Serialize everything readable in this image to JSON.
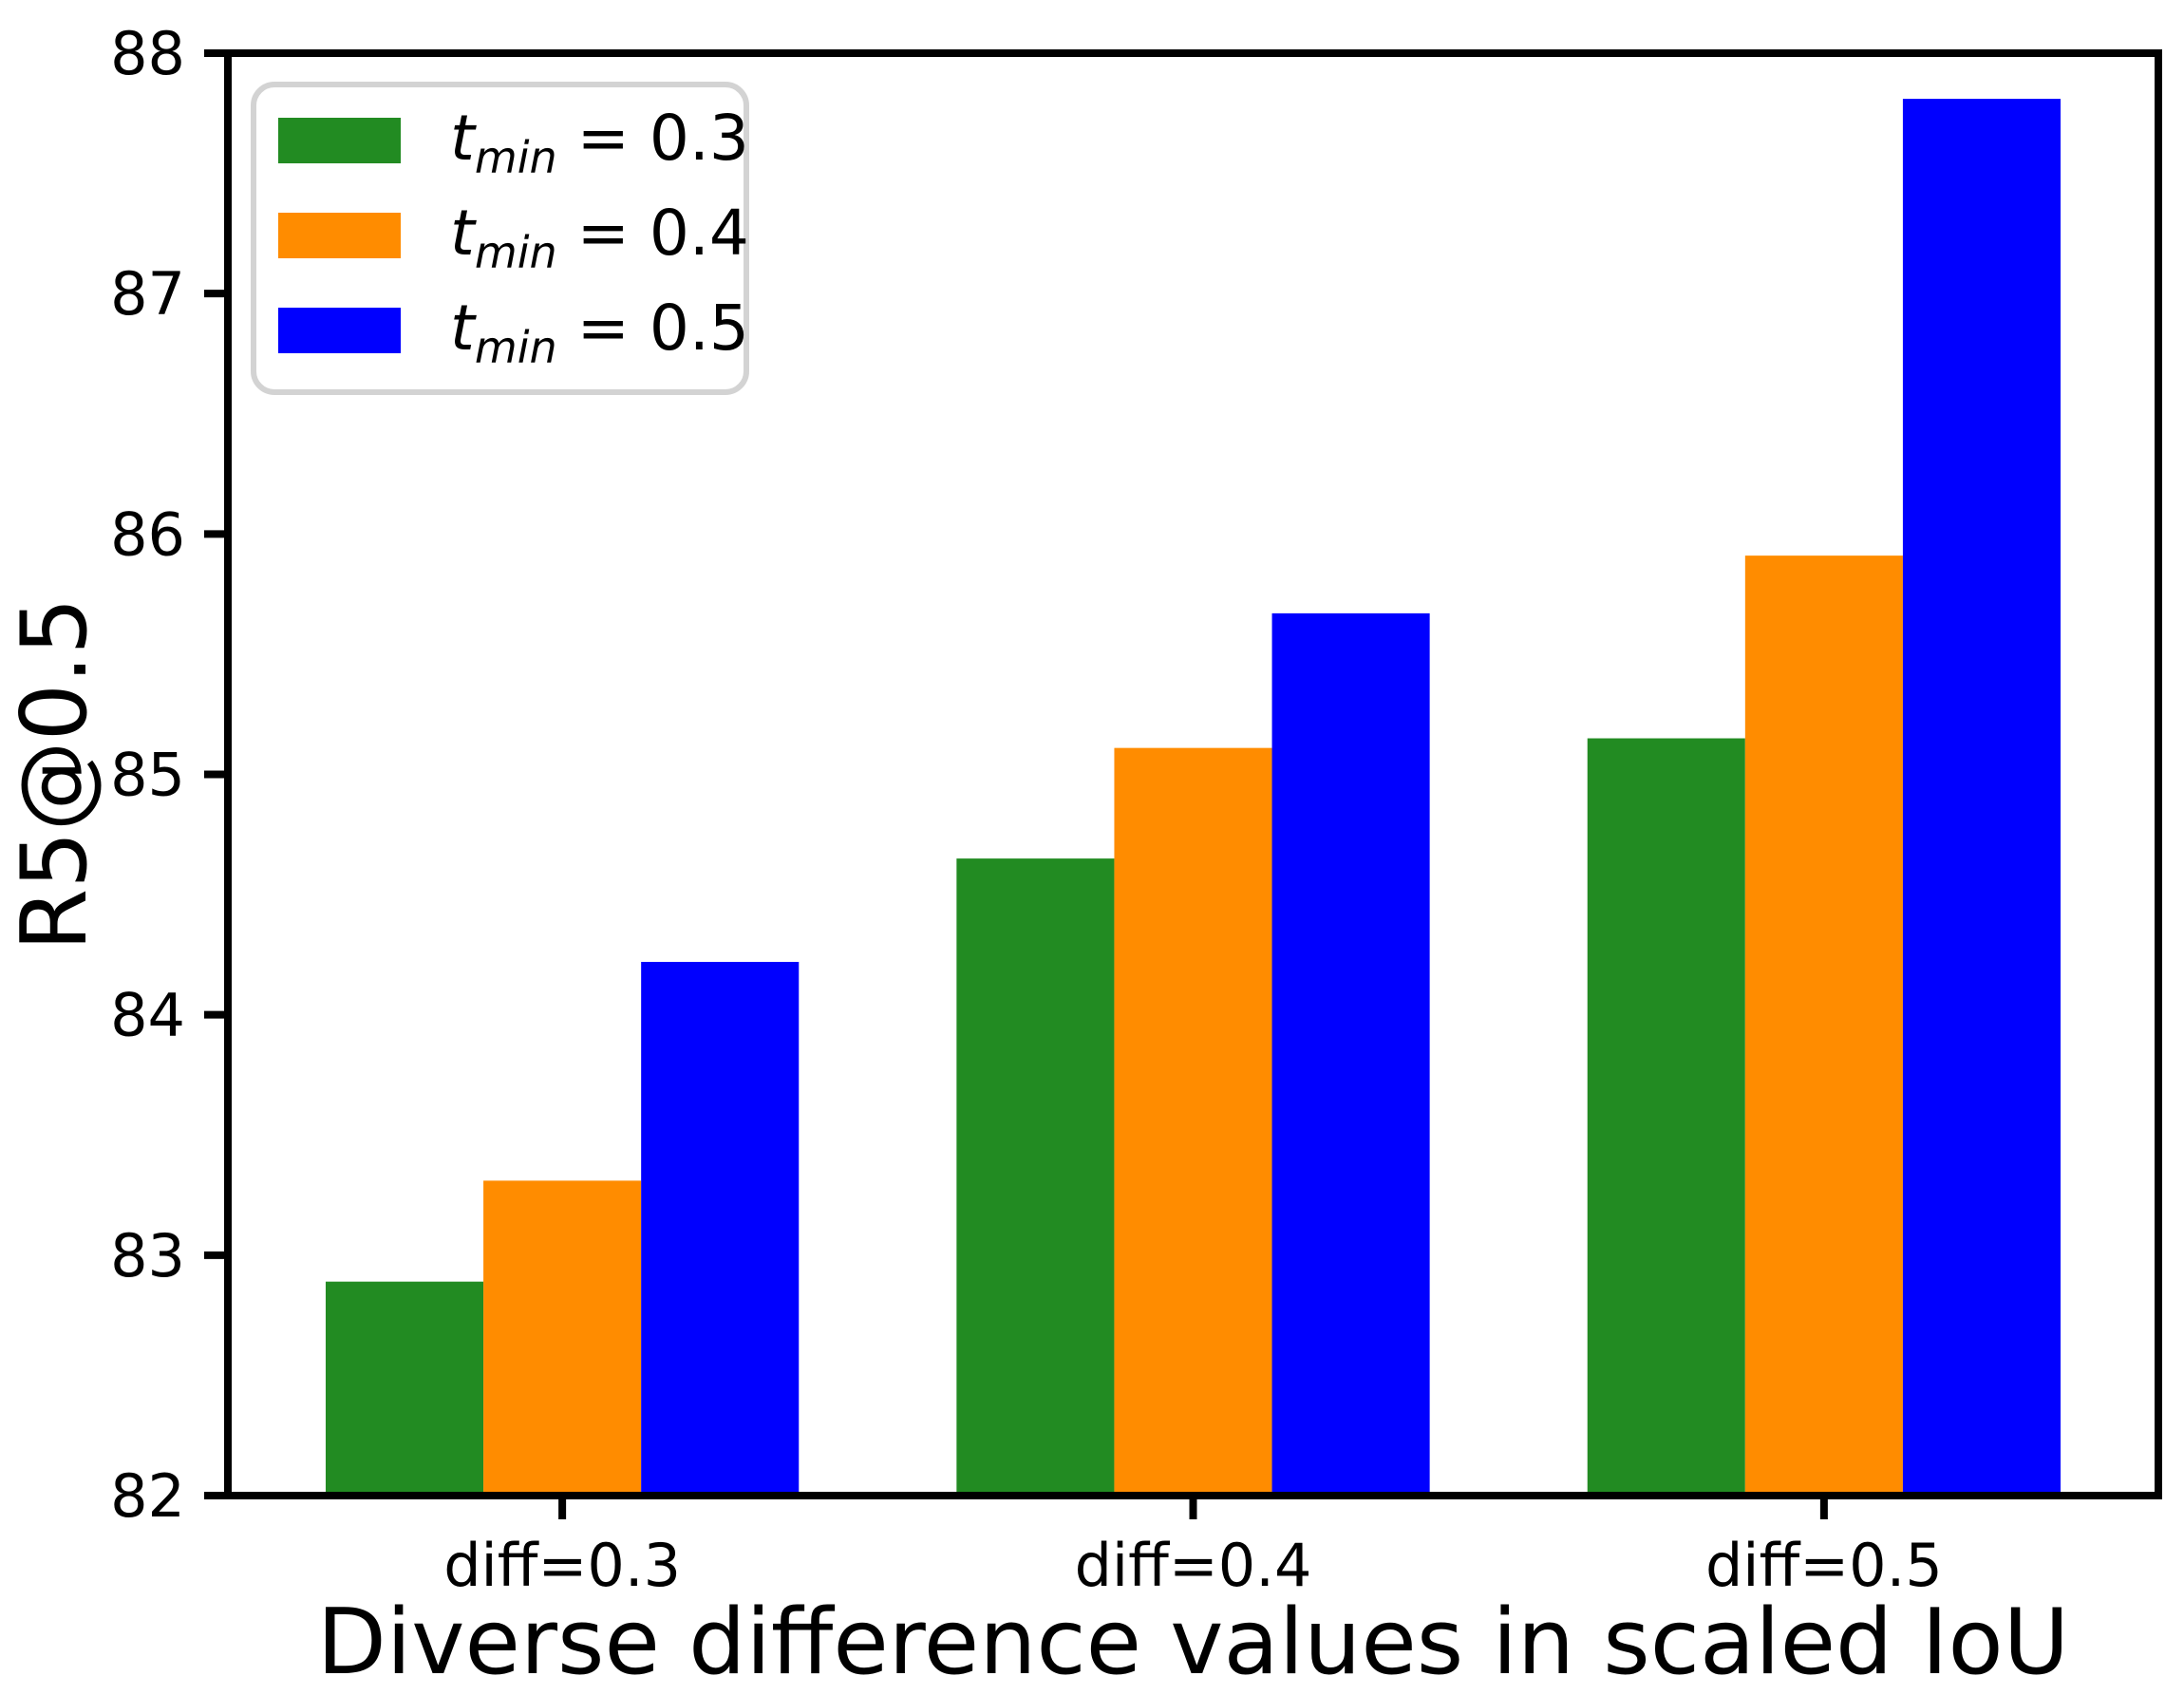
{
  "figure": {
    "description": "Grouped bar chart of R5@0.5 for diverse difference values in scaled IoU with three t_min settings"
  },
  "chart_data": {
    "type": "bar",
    "title": "",
    "xlabel": "Diverse difference values in scaled IoU",
    "ylabel": "R5@0.5",
    "categories": [
      "diff=0.3",
      "diff=0.4",
      "diff=0.5"
    ],
    "series": [
      {
        "name": "t_min = 0.3",
        "label_var": "t",
        "label_sub": "min",
        "label_eq": " = 0.3",
        "color": "#228B22",
        "values": [
          82.89,
          84.65,
          85.15
        ]
      },
      {
        "name": "t_min = 0.4",
        "label_var": "t",
        "label_sub": "min",
        "label_eq": " = 0.4",
        "color": "#FF8C00",
        "values": [
          83.31,
          85.11,
          85.91
        ]
      },
      {
        "name": "t_min = 0.5",
        "label_var": "t",
        "label_sub": "min",
        "label_eq": " = 0.5",
        "color": "#0000FF",
        "values": [
          84.22,
          85.67,
          87.81
        ]
      }
    ],
    "ylim": [
      82,
      88
    ],
    "yticks": [
      82,
      83,
      84,
      85,
      86,
      87,
      88
    ],
    "grid": false,
    "legend_position": "upper left",
    "axis_color": "#000000",
    "legend_border_color": "#D3D3D3",
    "background_color": "#FFFFFF"
  }
}
